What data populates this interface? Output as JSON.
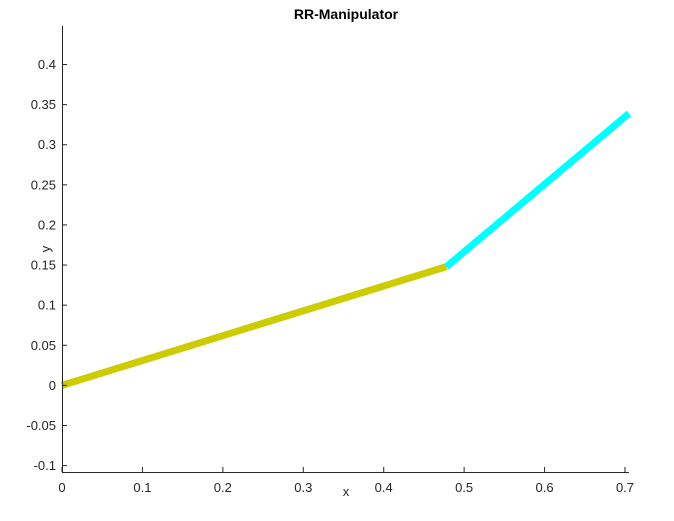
{
  "chart_data": {
    "type": "line",
    "title": "RR-Manipulator",
    "xlabel": "x",
    "ylabel": "y",
    "xlim": [
      0,
      0.705
    ],
    "ylim": [
      -0.108,
      0.448
    ],
    "xticks": [
      0,
      0.1,
      0.2,
      0.3,
      0.4,
      0.5,
      0.6,
      0.7
    ],
    "xtick_labels": [
      "0",
      "0.1",
      "0.2",
      "0.3",
      "0.4",
      "0.5",
      "0.6",
      "0.7"
    ],
    "yticks": [
      -0.1,
      -0.05,
      0,
      0.05,
      0.1,
      0.15,
      0.2,
      0.25,
      0.3,
      0.35,
      0.4
    ],
    "ytick_labels": [
      "-0.1",
      "-0.05",
      "0",
      "0.05",
      "0.1",
      "0.15",
      "0.2",
      "0.25",
      "0.3",
      "0.35",
      "0.4"
    ],
    "grid": false,
    "series": [
      {
        "x": [
          0,
          0.478
        ],
        "y": [
          0,
          0.148
        ],
        "color": "#cccc00"
      },
      {
        "x": [
          0.478,
          0.705
        ],
        "y": [
          0.148,
          0.339
        ],
        "color": "#00ffff"
      }
    ]
  }
}
